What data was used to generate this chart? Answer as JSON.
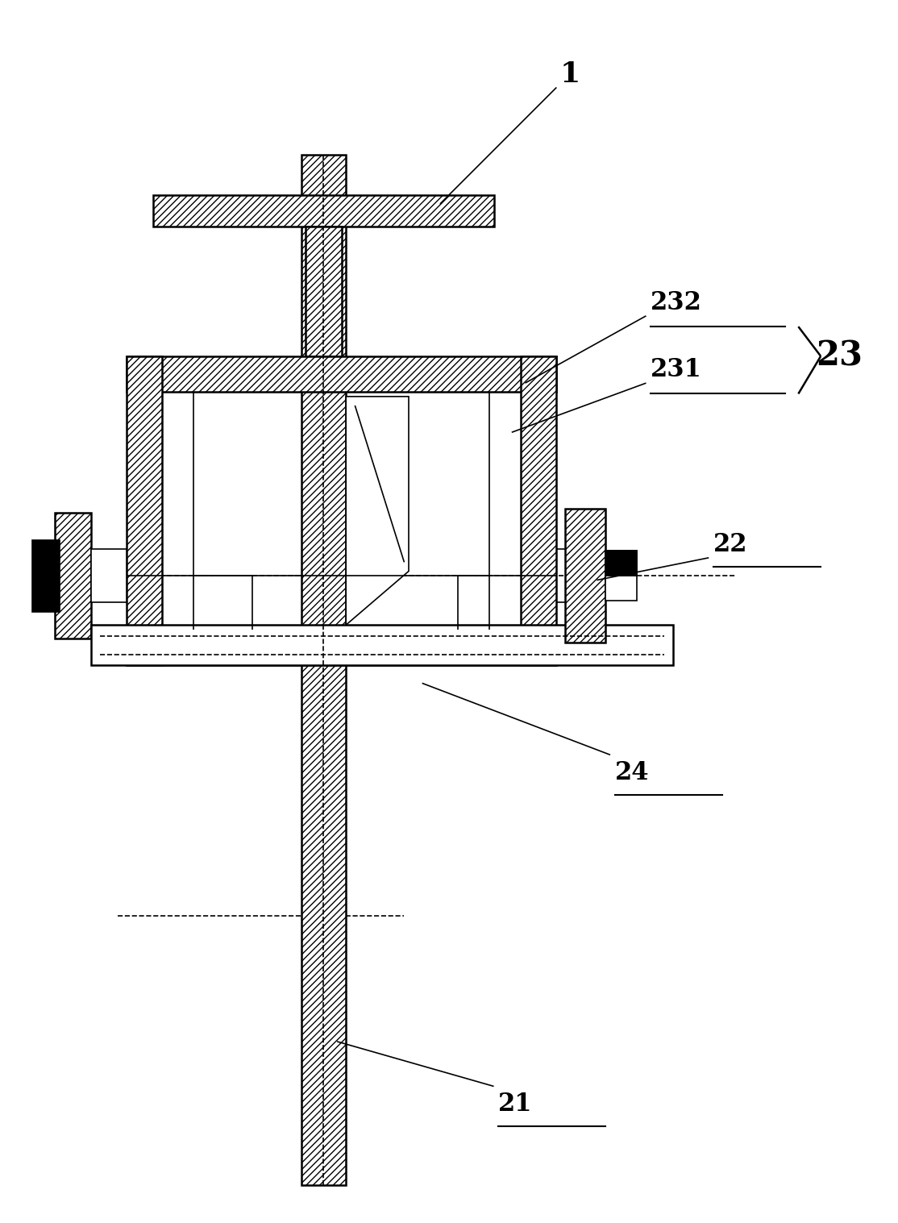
{
  "bg_color": "#ffffff",
  "line_color": "#000000",
  "figsize": [
    11.14,
    15.17
  ],
  "dpi": 100,
  "labels": {
    "1": {
      "text": "1",
      "fs": 26,
      "underline": false,
      "bold": true
    },
    "21": {
      "text": "21",
      "fs": 26,
      "underline": true,
      "bold": true
    },
    "22": {
      "text": "22",
      "fs": 24,
      "underline": true,
      "bold": true
    },
    "23": {
      "text": "23",
      "fs": 32,
      "underline": false,
      "bold": true
    },
    "231": {
      "text": "231",
      "fs": 24,
      "underline": true,
      "bold": true
    },
    "232": {
      "text": "232",
      "fs": 24,
      "underline": true,
      "bold": true
    }
  }
}
